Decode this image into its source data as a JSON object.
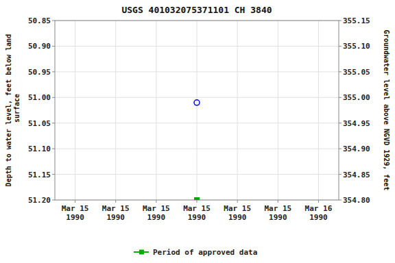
{
  "chart_data": {
    "type": "scatter",
    "title": "USGS 401032075371101 CH  3840",
    "ylabel": "Depth to water level, feet below land\n surface",
    "y2label": "Groundwater level above NGVD 1929, feet",
    "categories": [
      "Mar 15\n1990",
      "Mar 15\n1990",
      "Mar 15\n1990",
      "Mar 15\n1990",
      "Mar 15\n1990",
      "Mar 15\n1990",
      "Mar 16\n1990"
    ],
    "series": [
      {
        "color": "blue",
        "marker": "open-circle",
        "values": [
          null,
          null,
          null,
          51.01,
          null,
          null,
          null
        ]
      },
      {
        "name": "Period of approved data",
        "color": "#00aa00",
        "marker": "square",
        "values": [
          null,
          null,
          null,
          51.2,
          null,
          null,
          null
        ]
      }
    ],
    "ylim": [
      51.2,
      50.85
    ],
    "yticks": [
      50.85,
      {
        "value": 50.9,
        "label": "50.90"
      },
      50.95,
      {
        "value": 51,
        "label": "51.00"
      },
      51.05,
      {
        "value": 51.1,
        "label": "51.10"
      },
      51.15,
      {
        "value": 51.2,
        "label": "51.20"
      }
    ],
    "y2lim": [
      {
        "value": 354.8,
        "label": "354.80"
      },
      355.15
    ],
    "y2ticks": [
      355.15,
      {
        "value": 355.1,
        "label": "355.10"
      },
      355.05,
      {
        "value": 355,
        "label": "355.00"
      },
      354.95,
      {
        "value": 354.9,
        "label": "354.90"
      },
      354.85,
      {
        "value": 354.8,
        "label": "354.80"
      }
    ],
    "grid": true,
    "legend": "bottom"
  }
}
